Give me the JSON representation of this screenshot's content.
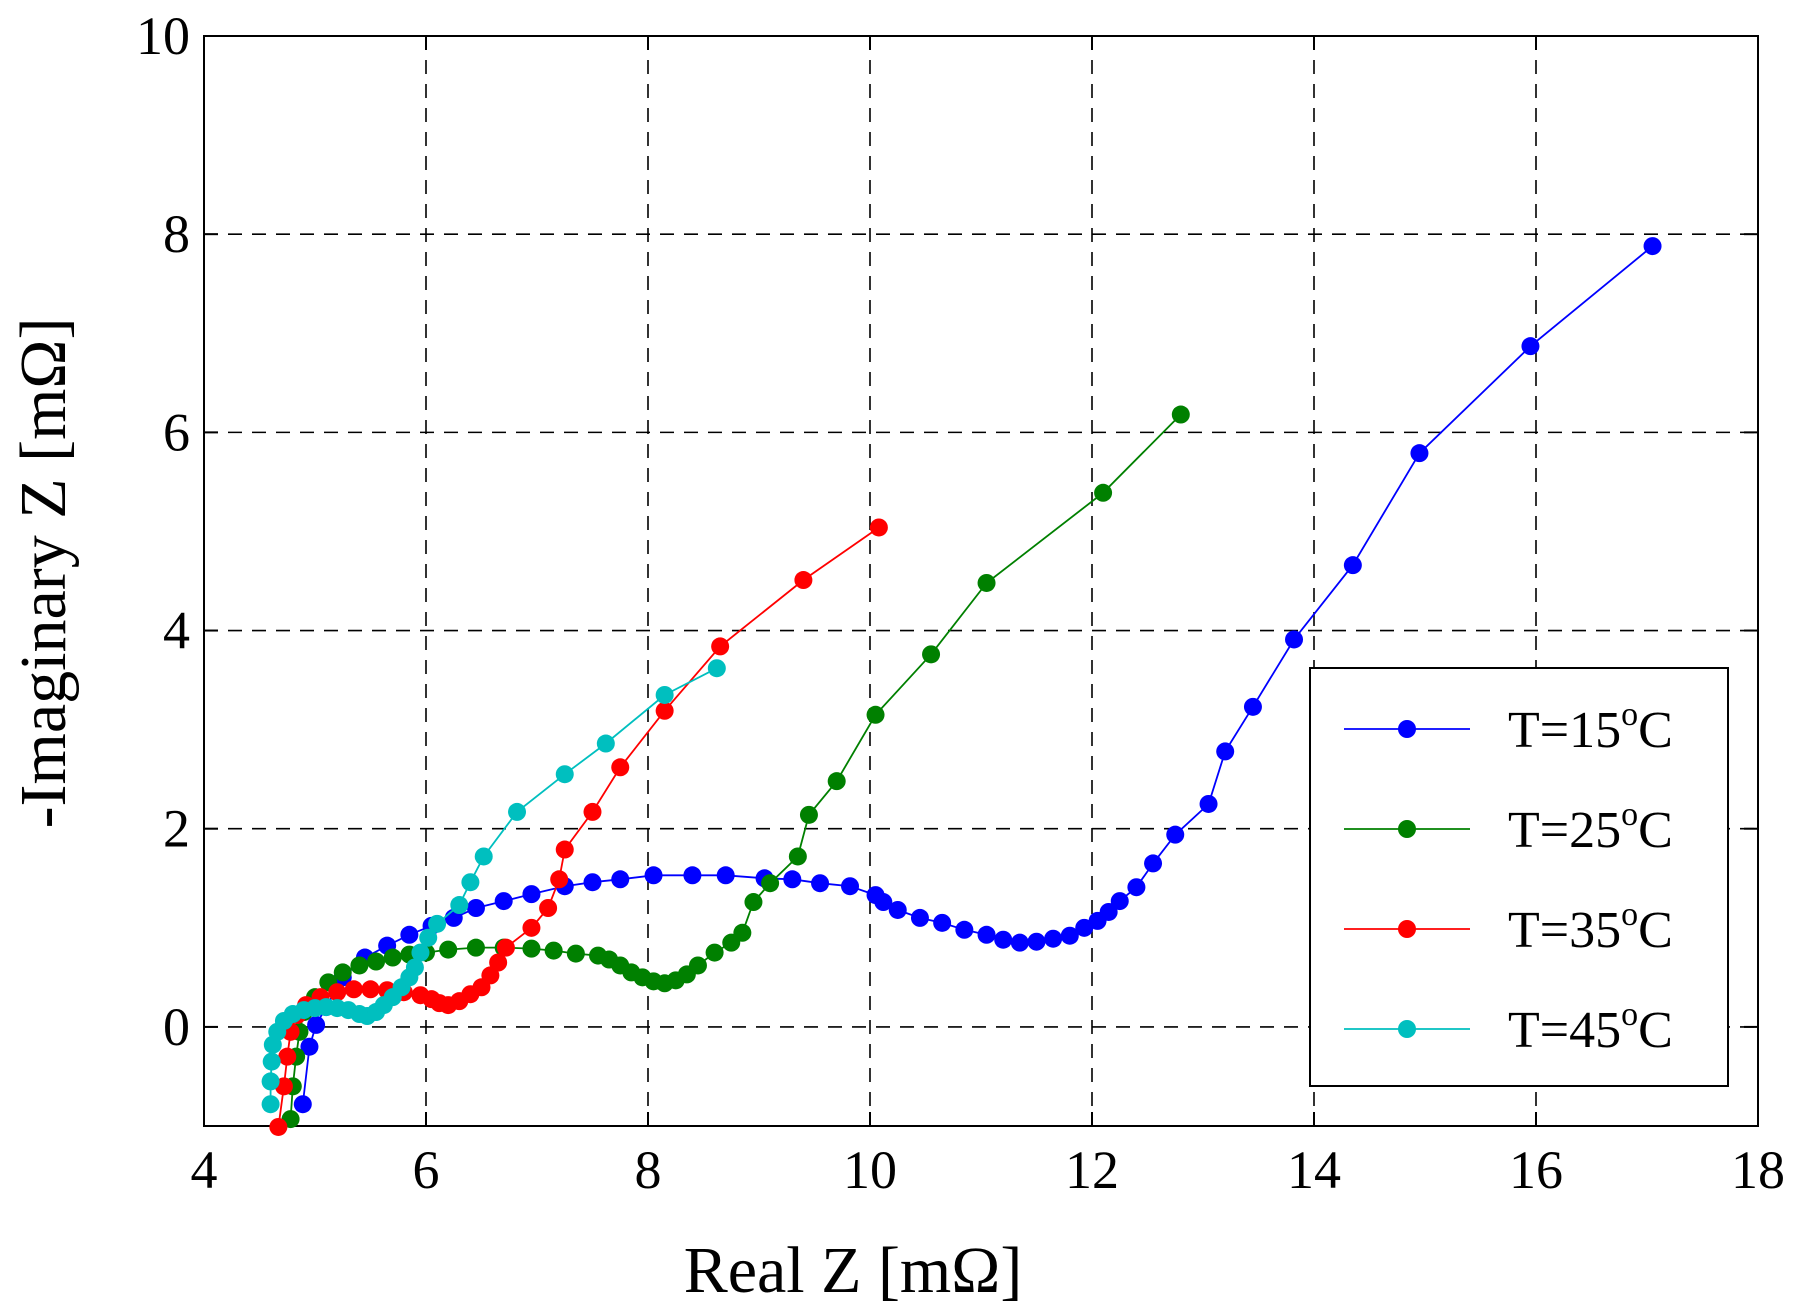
{
  "chart_data": {
    "type": "line",
    "title": "",
    "xlabel": "Real Z [mΩ]",
    "ylabel": "-Imaginary Z [mΩ]",
    "xlim": [
      4,
      18
    ],
    "ylim": [
      -1,
      10
    ],
    "xticks": [
      "4",
      "6",
      "8",
      "10",
      "12",
      "14",
      "16",
      "18"
    ],
    "yticks": [
      "0",
      "2",
      "4",
      "6",
      "8",
      "10"
    ],
    "grid": true,
    "legend_position": "bottom-right",
    "series": [
      {
        "name": "T=15",
        "label_prefix": "T=15",
        "label_sup": "o",
        "label_suffix": "C",
        "color": "#0000ff",
        "points": [
          [
            4.89,
            -0.78
          ],
          [
            4.95,
            -0.2
          ],
          [
            5.01,
            0.02
          ],
          [
            5.1,
            0.2
          ],
          [
            5.25,
            0.5
          ],
          [
            5.45,
            0.7
          ],
          [
            5.65,
            0.82
          ],
          [
            5.85,
            0.93
          ],
          [
            6.05,
            1.02
          ],
          [
            6.25,
            1.1
          ],
          [
            6.45,
            1.2
          ],
          [
            6.7,
            1.27
          ],
          [
            6.95,
            1.34
          ],
          [
            7.25,
            1.42
          ],
          [
            7.5,
            1.46
          ],
          [
            7.75,
            1.49
          ],
          [
            8.05,
            1.53
          ],
          [
            8.4,
            1.53
          ],
          [
            8.7,
            1.53
          ],
          [
            9.05,
            1.5
          ],
          [
            9.3,
            1.49
          ],
          [
            9.55,
            1.45
          ],
          [
            9.82,
            1.42
          ],
          [
            10.05,
            1.33
          ],
          [
            10.12,
            1.26
          ],
          [
            10.25,
            1.18
          ],
          [
            10.45,
            1.1
          ],
          [
            10.65,
            1.05
          ],
          [
            10.85,
            0.98
          ],
          [
            11.05,
            0.93
          ],
          [
            11.2,
            0.88
          ],
          [
            11.35,
            0.85
          ],
          [
            11.5,
            0.86
          ],
          [
            11.65,
            0.89
          ],
          [
            11.8,
            0.92
          ],
          [
            11.93,
            1.0
          ],
          [
            12.05,
            1.07
          ],
          [
            12.15,
            1.16
          ],
          [
            12.25,
            1.27
          ],
          [
            12.4,
            1.41
          ],
          [
            12.55,
            1.65
          ],
          [
            12.75,
            1.94
          ],
          [
            13.05,
            2.25
          ],
          [
            13.2,
            2.78
          ],
          [
            13.45,
            3.23
          ],
          [
            13.82,
            3.91
          ],
          [
            14.35,
            4.66
          ],
          [
            14.95,
            5.79
          ],
          [
            15.95,
            6.87
          ],
          [
            17.05,
            7.88
          ]
        ]
      },
      {
        "name": "T=25",
        "label_prefix": "T=25",
        "label_sup": "o",
        "label_suffix": "C",
        "color": "#008000",
        "points": [
          [
            4.78,
            -0.93
          ],
          [
            4.8,
            -0.6
          ],
          [
            4.83,
            -0.3
          ],
          [
            4.86,
            -0.05
          ],
          [
            4.9,
            0.15
          ],
          [
            5.0,
            0.3
          ],
          [
            5.12,
            0.45
          ],
          [
            5.25,
            0.55
          ],
          [
            5.4,
            0.62
          ],
          [
            5.55,
            0.66
          ],
          [
            5.7,
            0.7
          ],
          [
            5.85,
            0.73
          ],
          [
            6.0,
            0.75
          ],
          [
            6.2,
            0.78
          ],
          [
            6.45,
            0.8
          ],
          [
            6.7,
            0.8
          ],
          [
            6.95,
            0.79
          ],
          [
            7.15,
            0.77
          ],
          [
            7.35,
            0.74
          ],
          [
            7.55,
            0.72
          ],
          [
            7.65,
            0.68
          ],
          [
            7.75,
            0.62
          ],
          [
            7.85,
            0.55
          ],
          [
            7.95,
            0.5
          ],
          [
            8.05,
            0.46
          ],
          [
            8.15,
            0.44
          ],
          [
            8.25,
            0.47
          ],
          [
            8.35,
            0.53
          ],
          [
            8.45,
            0.62
          ],
          [
            8.6,
            0.75
          ],
          [
            8.75,
            0.85
          ],
          [
            8.85,
            0.95
          ],
          [
            8.95,
            1.26
          ],
          [
            9.1,
            1.45
          ],
          [
            9.35,
            1.72
          ],
          [
            9.45,
            2.14
          ],
          [
            9.7,
            2.48
          ],
          [
            10.05,
            3.15
          ],
          [
            10.55,
            3.76
          ],
          [
            11.05,
            4.48
          ],
          [
            12.1,
            5.39
          ],
          [
            12.8,
            6.18
          ]
        ]
      },
      {
        "name": "T=35",
        "label_prefix": "T=35",
        "label_sup": "o",
        "label_suffix": "C",
        "color": "#ff0000",
        "points": [
          [
            4.67,
            -1.01
          ],
          [
            4.72,
            -0.6
          ],
          [
            4.75,
            -0.3
          ],
          [
            4.78,
            -0.05
          ],
          [
            4.84,
            0.12
          ],
          [
            4.92,
            0.22
          ],
          [
            5.05,
            0.3
          ],
          [
            5.2,
            0.35
          ],
          [
            5.35,
            0.38
          ],
          [
            5.5,
            0.38
          ],
          [
            5.65,
            0.37
          ],
          [
            5.8,
            0.35
          ],
          [
            5.95,
            0.32
          ],
          [
            6.05,
            0.28
          ],
          [
            6.12,
            0.24
          ],
          [
            6.2,
            0.22
          ],
          [
            6.3,
            0.26
          ],
          [
            6.4,
            0.33
          ],
          [
            6.5,
            0.4
          ],
          [
            6.58,
            0.52
          ],
          [
            6.65,
            0.65
          ],
          [
            6.72,
            0.8
          ],
          [
            6.95,
            1.0
          ],
          [
            7.1,
            1.2
          ],
          [
            7.2,
            1.49
          ],
          [
            7.25,
            1.79
          ],
          [
            7.5,
            2.17
          ],
          [
            7.75,
            2.62
          ],
          [
            8.15,
            3.19
          ],
          [
            8.65,
            3.84
          ],
          [
            9.4,
            4.51
          ],
          [
            10.08,
            5.04
          ]
        ]
      },
      {
        "name": "T=45",
        "label_prefix": "T=45",
        "label_sup": "o",
        "label_suffix": "C",
        "color": "#00bfbf",
        "points": [
          [
            4.6,
            -0.78
          ],
          [
            4.6,
            -0.55
          ],
          [
            4.61,
            -0.35
          ],
          [
            4.62,
            -0.18
          ],
          [
            4.66,
            -0.05
          ],
          [
            4.72,
            0.06
          ],
          [
            4.8,
            0.13
          ],
          [
            4.9,
            0.17
          ],
          [
            5.0,
            0.19
          ],
          [
            5.1,
            0.2
          ],
          [
            5.2,
            0.19
          ],
          [
            5.3,
            0.17
          ],
          [
            5.4,
            0.13
          ],
          [
            5.47,
            0.11
          ],
          [
            5.55,
            0.15
          ],
          [
            5.62,
            0.22
          ],
          [
            5.7,
            0.3
          ],
          [
            5.78,
            0.4
          ],
          [
            5.85,
            0.5
          ],
          [
            5.9,
            0.6
          ],
          [
            5.95,
            0.75
          ],
          [
            6.02,
            0.9
          ],
          [
            6.1,
            1.04
          ],
          [
            6.3,
            1.23
          ],
          [
            6.4,
            1.46
          ],
          [
            6.52,
            1.72
          ],
          [
            6.82,
            2.17
          ],
          [
            7.25,
            2.55
          ],
          [
            7.62,
            2.86
          ],
          [
            8.15,
            3.35
          ],
          [
            8.62,
            3.62
          ]
        ]
      }
    ]
  }
}
